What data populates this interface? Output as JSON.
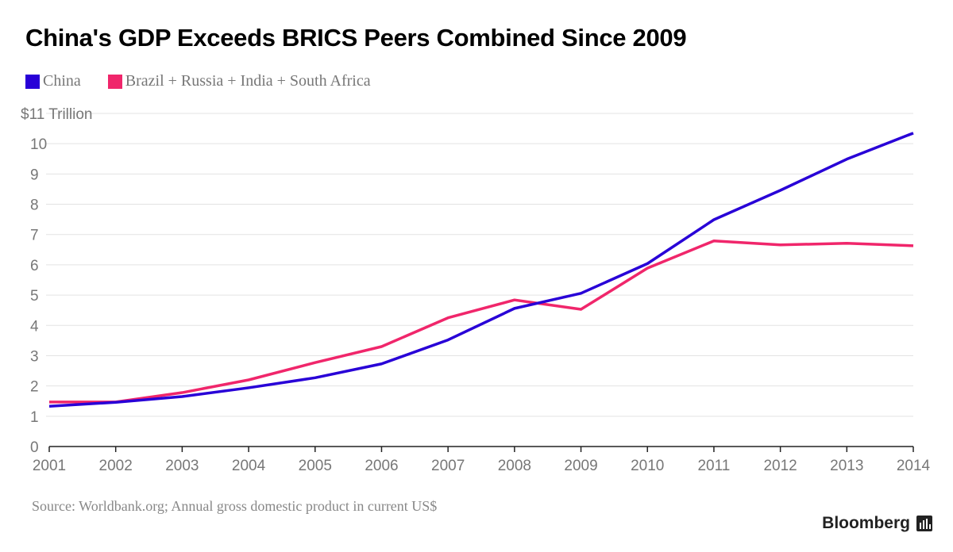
{
  "chart_data": {
    "type": "line",
    "title": "China's GDP Exceeds BRICS Peers Combined Since 2009",
    "x": [
      2001,
      2002,
      2003,
      2004,
      2005,
      2006,
      2007,
      2008,
      2009,
      2010,
      2011,
      2012,
      2013,
      2014
    ],
    "x_tick_labels": [
      "2001",
      "2002",
      "2003",
      "2004",
      "2005",
      "2006",
      "2007",
      "2008",
      "2009",
      "2010",
      "2011",
      "2012",
      "2013",
      "2014"
    ],
    "y_tick_labels": [
      "0",
      "1",
      "2",
      "3",
      "4",
      "5",
      "6",
      "7",
      "8",
      "9",
      "10",
      "$11 Trillion"
    ],
    "ylim": [
      0,
      11
    ],
    "grid": true,
    "legend_position": "top-left",
    "series": [
      {
        "name": "China",
        "color": "#2800d7",
        "values": [
          1.33,
          1.46,
          1.65,
          1.94,
          2.27,
          2.73,
          3.52,
          4.56,
          5.06,
          6.04,
          7.49,
          8.46,
          9.49,
          10.35
        ]
      },
      {
        "name": "Brazil + Russia + India + South Africa",
        "color": "#f0266b",
        "values": [
          1.47,
          1.47,
          1.78,
          2.2,
          2.77,
          3.3,
          4.25,
          4.84,
          4.53,
          5.89,
          6.79,
          6.66,
          6.71,
          6.63
        ]
      }
    ],
    "source": "Source: Worldbank.org; Annual gross domestic product in current US$"
  },
  "branding": {
    "logo": "Bloomberg"
  }
}
